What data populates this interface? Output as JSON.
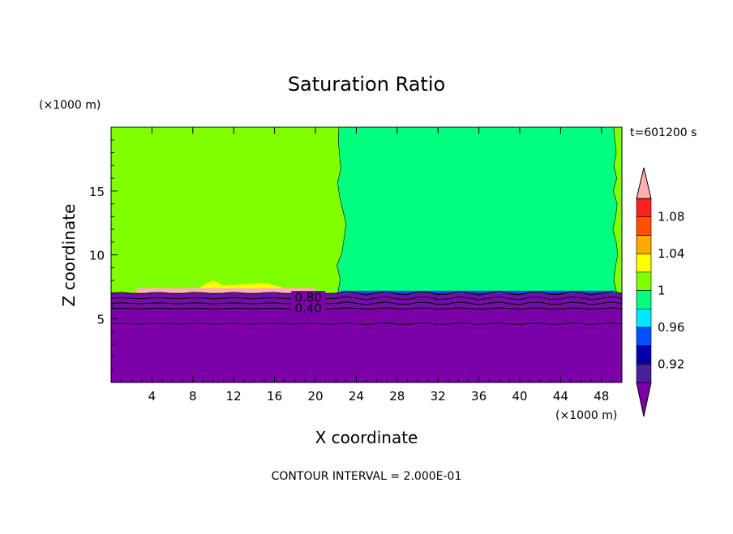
{
  "chart_data": {
    "type": "heatmap",
    "title": "Saturation Ratio",
    "xlabel": "X coordinate",
    "ylabel": "Z coordinate",
    "x_unit": "(×1000 m)",
    "y_unit": "(×1000 m)",
    "time_label": "t=601200 s",
    "footer": "CONTOUR INTERVAL = 2.000E-01",
    "xlim": [
      0,
      50
    ],
    "ylim": [
      0,
      20
    ],
    "x_ticks": [
      "4",
      "8",
      "12",
      "16",
      "20",
      "24",
      "28",
      "32",
      "36",
      "40",
      "44",
      "48"
    ],
    "y_ticks": [
      "5",
      "10",
      "15"
    ],
    "contour_labels": [
      "0.80",
      "0.40"
    ],
    "colorbar": {
      "colors": [
        "#7b00a8",
        "#4b1e9e",
        "#0000a8",
        "#0050ff",
        "#00e8ff",
        "#00ff80",
        "#80ff00",
        "#ffff00",
        "#ffaa00",
        "#ff5000",
        "#ff2020",
        "#ffb0b0"
      ],
      "labels": [
        "0.92",
        "0.96",
        "1",
        "1.04",
        "1.08"
      ]
    },
    "regions": [
      {
        "name": "dry lower layer",
        "value": 0.9,
        "color": "#7b00a8",
        "x": [
          0,
          50
        ],
        "z": [
          0,
          7
        ]
      },
      {
        "name": "left upper region",
        "value": 1.0,
        "color": "#80ff00",
        "x": [
          0,
          22.5
        ],
        "z": [
          7,
          20
        ]
      },
      {
        "name": "right upper region",
        "value": 0.98,
        "color": "#00ff80",
        "x": [
          22.5,
          49
        ],
        "z": [
          7,
          20
        ]
      },
      {
        "name": "supersaturated patch",
        "value": 1.04,
        "color": "#ffff00",
        "x": [
          8,
          17
        ],
        "z": [
          7,
          7.8
        ]
      }
    ]
  }
}
